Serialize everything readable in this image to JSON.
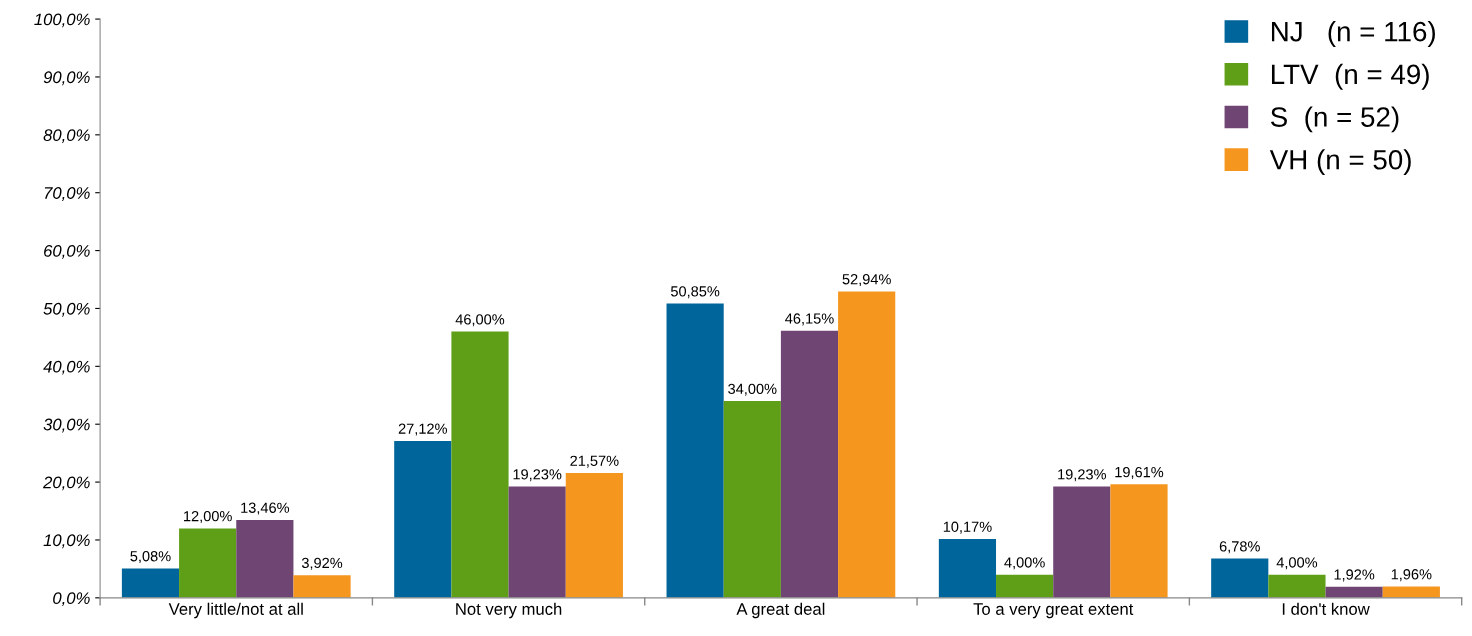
{
  "chart_data": {
    "type": "bar",
    "categories": [
      "Very little/not at all",
      "Not very much",
      "A great deal",
      "To a very great extent",
      "I don't know"
    ],
    "series": [
      {
        "name": "NJ   (n = 116)",
        "color": "#00659a",
        "values": [
          5.08,
          27.12,
          50.85,
          10.17,
          6.78
        ],
        "value_labels": [
          "5,08%",
          "27,12%",
          "50,85%",
          "10,17%",
          "6,78%"
        ]
      },
      {
        "name": "LTV  (n = 49)",
        "color": "#5f9f17",
        "values": [
          12.0,
          46.0,
          34.0,
          4.0,
          4.0
        ],
        "value_labels": [
          "12,00%",
          "46,00%",
          "34,00%",
          "4,00%",
          "4,00%"
        ]
      },
      {
        "name": "S  (n = 52)",
        "color": "#6f4574",
        "values": [
          13.46,
          19.23,
          46.15,
          19.23,
          1.92
        ],
        "value_labels": [
          "13,46%",
          "19,23%",
          "46,15%",
          "19,23%",
          "1,92%"
        ]
      },
      {
        "name": "VH (n = 50)",
        "color": "#f5961f",
        "values": [
          3.92,
          21.57,
          52.94,
          19.61,
          1.96
        ],
        "value_labels": [
          "3,92%",
          "21,57%",
          "52,94%",
          "19,61%",
          "1,96%"
        ]
      }
    ],
    "ylim": [
      0,
      100
    ],
    "yticks": [
      {
        "value": 0,
        "label": "0,0%"
      },
      {
        "value": 10,
        "label": "10,0%"
      },
      {
        "value": 20,
        "label": "20,0%"
      },
      {
        "value": 30,
        "label": "30,0%"
      },
      {
        "value": 40,
        "label": "40,0%"
      },
      {
        "value": 50,
        "label": "50,0%"
      },
      {
        "value": 60,
        "label": "60,0%"
      },
      {
        "value": 70,
        "label": "70,0%"
      },
      {
        "value": 80,
        "label": "80,0%"
      },
      {
        "value": 90,
        "label": "90,0%"
      },
      {
        "value": 100,
        "label": "100,0%"
      }
    ],
    "grid": false,
    "legend": "top right"
  }
}
